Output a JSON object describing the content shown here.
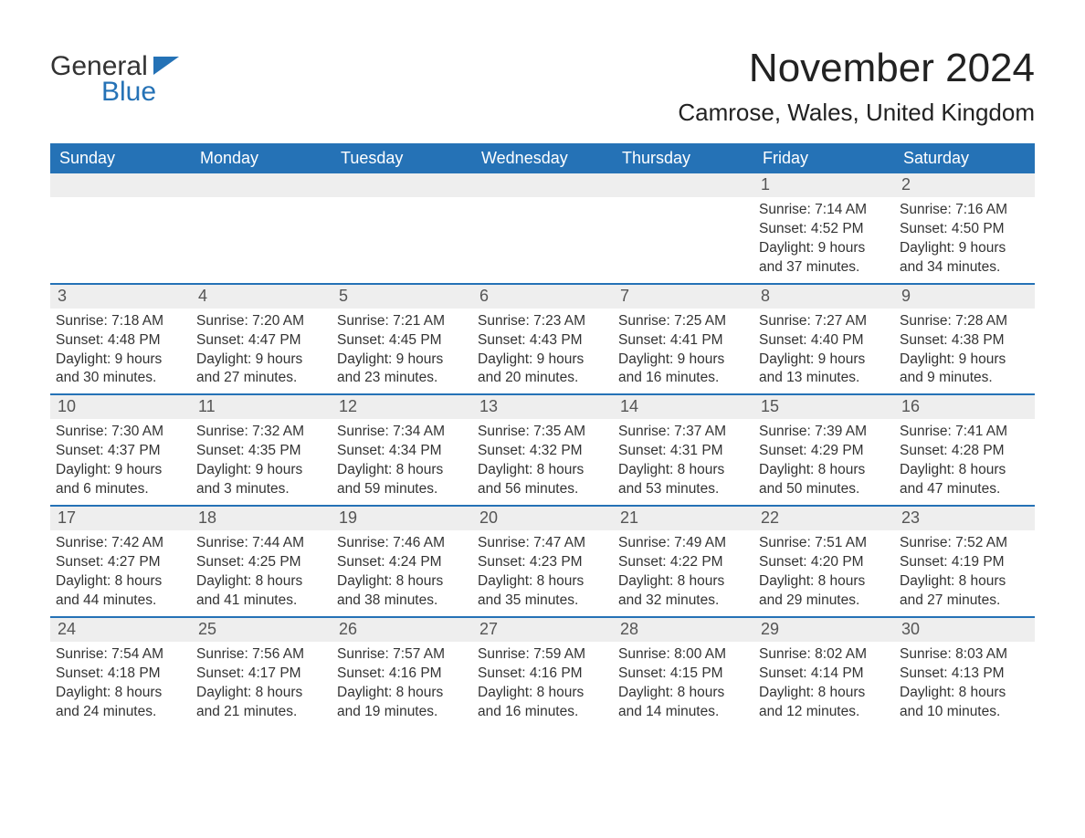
{
  "logo": {
    "text1": "General",
    "text2": "Blue",
    "flag_color": "#2572b6"
  },
  "title": "November 2024",
  "location": "Camrose, Wales, United Kingdom",
  "colors": {
    "header_bg": "#2572b6",
    "header_text": "#ffffff",
    "strip_bg": "#eeeeee",
    "rule": "#2572b6",
    "text": "#333333",
    "background": "#ffffff"
  },
  "day_labels": [
    "Sunday",
    "Monday",
    "Tuesday",
    "Wednesday",
    "Thursday",
    "Friday",
    "Saturday"
  ],
  "labels": {
    "sunrise": "Sunrise:",
    "sunset": "Sunset:",
    "daylight": "Daylight:"
  },
  "weeks": [
    [
      {
        "blank": true
      },
      {
        "blank": true
      },
      {
        "blank": true
      },
      {
        "blank": true
      },
      {
        "blank": true
      },
      {
        "num": "1",
        "sunrise": "7:14 AM",
        "sunset": "4:52 PM",
        "daylight": "9 hours and 37 minutes."
      },
      {
        "num": "2",
        "sunrise": "7:16 AM",
        "sunset": "4:50 PM",
        "daylight": "9 hours and 34 minutes."
      }
    ],
    [
      {
        "num": "3",
        "sunrise": "7:18 AM",
        "sunset": "4:48 PM",
        "daylight": "9 hours and 30 minutes."
      },
      {
        "num": "4",
        "sunrise": "7:20 AM",
        "sunset": "4:47 PM",
        "daylight": "9 hours and 27 minutes."
      },
      {
        "num": "5",
        "sunrise": "7:21 AM",
        "sunset": "4:45 PM",
        "daylight": "9 hours and 23 minutes."
      },
      {
        "num": "6",
        "sunrise": "7:23 AM",
        "sunset": "4:43 PM",
        "daylight": "9 hours and 20 minutes."
      },
      {
        "num": "7",
        "sunrise": "7:25 AM",
        "sunset": "4:41 PM",
        "daylight": "9 hours and 16 minutes."
      },
      {
        "num": "8",
        "sunrise": "7:27 AM",
        "sunset": "4:40 PM",
        "daylight": "9 hours and 13 minutes."
      },
      {
        "num": "9",
        "sunrise": "7:28 AM",
        "sunset": "4:38 PM",
        "daylight": "9 hours and 9 minutes."
      }
    ],
    [
      {
        "num": "10",
        "sunrise": "7:30 AM",
        "sunset": "4:37 PM",
        "daylight": "9 hours and 6 minutes."
      },
      {
        "num": "11",
        "sunrise": "7:32 AM",
        "sunset": "4:35 PM",
        "daylight": "9 hours and 3 minutes."
      },
      {
        "num": "12",
        "sunrise": "7:34 AM",
        "sunset": "4:34 PM",
        "daylight": "8 hours and 59 minutes."
      },
      {
        "num": "13",
        "sunrise": "7:35 AM",
        "sunset": "4:32 PM",
        "daylight": "8 hours and 56 minutes."
      },
      {
        "num": "14",
        "sunrise": "7:37 AM",
        "sunset": "4:31 PM",
        "daylight": "8 hours and 53 minutes."
      },
      {
        "num": "15",
        "sunrise": "7:39 AM",
        "sunset": "4:29 PM",
        "daylight": "8 hours and 50 minutes."
      },
      {
        "num": "16",
        "sunrise": "7:41 AM",
        "sunset": "4:28 PM",
        "daylight": "8 hours and 47 minutes."
      }
    ],
    [
      {
        "num": "17",
        "sunrise": "7:42 AM",
        "sunset": "4:27 PM",
        "daylight": "8 hours and 44 minutes."
      },
      {
        "num": "18",
        "sunrise": "7:44 AM",
        "sunset": "4:25 PM",
        "daylight": "8 hours and 41 minutes."
      },
      {
        "num": "19",
        "sunrise": "7:46 AM",
        "sunset": "4:24 PM",
        "daylight": "8 hours and 38 minutes."
      },
      {
        "num": "20",
        "sunrise": "7:47 AM",
        "sunset": "4:23 PM",
        "daylight": "8 hours and 35 minutes."
      },
      {
        "num": "21",
        "sunrise": "7:49 AM",
        "sunset": "4:22 PM",
        "daylight": "8 hours and 32 minutes."
      },
      {
        "num": "22",
        "sunrise": "7:51 AM",
        "sunset": "4:20 PM",
        "daylight": "8 hours and 29 minutes."
      },
      {
        "num": "23",
        "sunrise": "7:52 AM",
        "sunset": "4:19 PM",
        "daylight": "8 hours and 27 minutes."
      }
    ],
    [
      {
        "num": "24",
        "sunrise": "7:54 AM",
        "sunset": "4:18 PM",
        "daylight": "8 hours and 24 minutes."
      },
      {
        "num": "25",
        "sunrise": "7:56 AM",
        "sunset": "4:17 PM",
        "daylight": "8 hours and 21 minutes."
      },
      {
        "num": "26",
        "sunrise": "7:57 AM",
        "sunset": "4:16 PM",
        "daylight": "8 hours and 19 minutes."
      },
      {
        "num": "27",
        "sunrise": "7:59 AM",
        "sunset": "4:16 PM",
        "daylight": "8 hours and 16 minutes."
      },
      {
        "num": "28",
        "sunrise": "8:00 AM",
        "sunset": "4:15 PM",
        "daylight": "8 hours and 14 minutes."
      },
      {
        "num": "29",
        "sunrise": "8:02 AM",
        "sunset": "4:14 PM",
        "daylight": "8 hours and 12 minutes."
      },
      {
        "num": "30",
        "sunrise": "8:03 AM",
        "sunset": "4:13 PM",
        "daylight": "8 hours and 10 minutes."
      }
    ]
  ]
}
